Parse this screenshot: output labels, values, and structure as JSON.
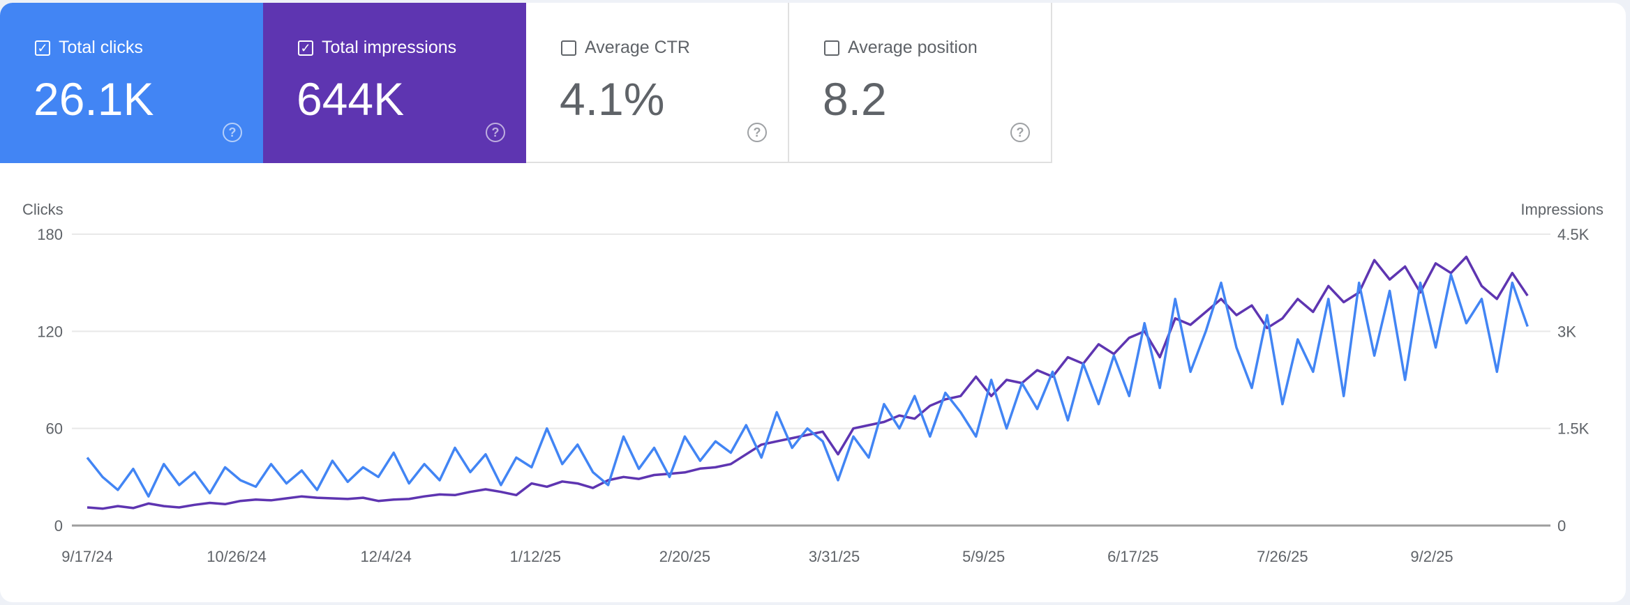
{
  "cards": [
    {
      "label": "Total clicks",
      "value": "26.1K",
      "checked": true,
      "color": "#4285f4"
    },
    {
      "label": "Total impressions",
      "value": "644K",
      "checked": true,
      "color": "#5e35b1"
    },
    {
      "label": "Average CTR",
      "value": "4.1%",
      "checked": false
    },
    {
      "label": "Average position",
      "value": "8.2",
      "checked": false
    }
  ],
  "chart_data": {
    "type": "line",
    "left_axis": {
      "label": "Clicks",
      "ticks": [
        "180",
        "120",
        "60",
        "0"
      ],
      "range": [
        0,
        180
      ]
    },
    "right_axis": {
      "label": "Impressions",
      "ticks": [
        "4.5K",
        "3K",
        "1.5K",
        "0"
      ],
      "range": [
        0,
        4500
      ]
    },
    "x_tick_labels": [
      "9/17/24",
      "10/26/24",
      "12/4/24",
      "1/12/25",
      "2/20/25",
      "3/31/25",
      "5/9/25",
      "6/17/25",
      "7/26/25",
      "9/2/25"
    ],
    "x_tick_days": [
      0,
      39,
      78,
      117,
      156,
      195,
      234,
      273,
      312,
      351
    ],
    "x_step_days": 4,
    "grid": true,
    "series": [
      {
        "name": "Clicks",
        "axis": "left",
        "color": "#4285f4",
        "values": [
          42,
          30,
          22,
          35,
          18,
          38,
          25,
          33,
          20,
          36,
          28,
          24,
          38,
          26,
          34,
          22,
          40,
          27,
          36,
          30,
          45,
          26,
          38,
          28,
          48,
          33,
          44,
          25,
          42,
          36,
          60,
          38,
          50,
          33,
          25,
          55,
          35,
          48,
          30,
          55,
          40,
          52,
          45,
          62,
          42,
          70,
          48,
          60,
          52,
          28,
          55,
          42,
          75,
          60,
          80,
          55,
          82,
          70,
          55,
          90,
          60,
          88,
          72,
          95,
          65,
          100,
          75,
          105,
          80,
          125,
          85,
          140,
          95,
          120,
          150,
          110,
          85,
          130,
          75,
          115,
          95,
          140,
          80,
          150,
          105,
          145,
          90,
          150,
          110,
          155,
          125,
          140,
          95,
          150,
          123
        ]
      },
      {
        "name": "Impressions",
        "axis": "right",
        "color": "#5e35b1",
        "values": [
          280,
          260,
          300,
          270,
          340,
          300,
          280,
          320,
          350,
          330,
          380,
          400,
          390,
          420,
          450,
          430,
          420,
          410,
          430,
          380,
          400,
          410,
          450,
          480,
          470,
          520,
          560,
          520,
          470,
          650,
          600,
          680,
          650,
          580,
          700,
          750,
          720,
          780,
          800,
          820,
          880,
          900,
          950,
          1100,
          1250,
          1300,
          1350,
          1400,
          1450,
          1100,
          1500,
          1550,
          1600,
          1700,
          1650,
          1850,
          1950,
          2000,
          2300,
          2000,
          2250,
          2200,
          2400,
          2300,
          2600,
          2500,
          2800,
          2650,
          2900,
          3000,
          2600,
          3200,
          3100,
          3300,
          3500,
          3250,
          3400,
          3050,
          3200,
          3500,
          3300,
          3700,
          3450,
          3600,
          4100,
          3800,
          4000,
          3600,
          4050,
          3900,
          4150,
          3700,
          3500,
          3900,
          3550
        ]
      }
    ]
  }
}
